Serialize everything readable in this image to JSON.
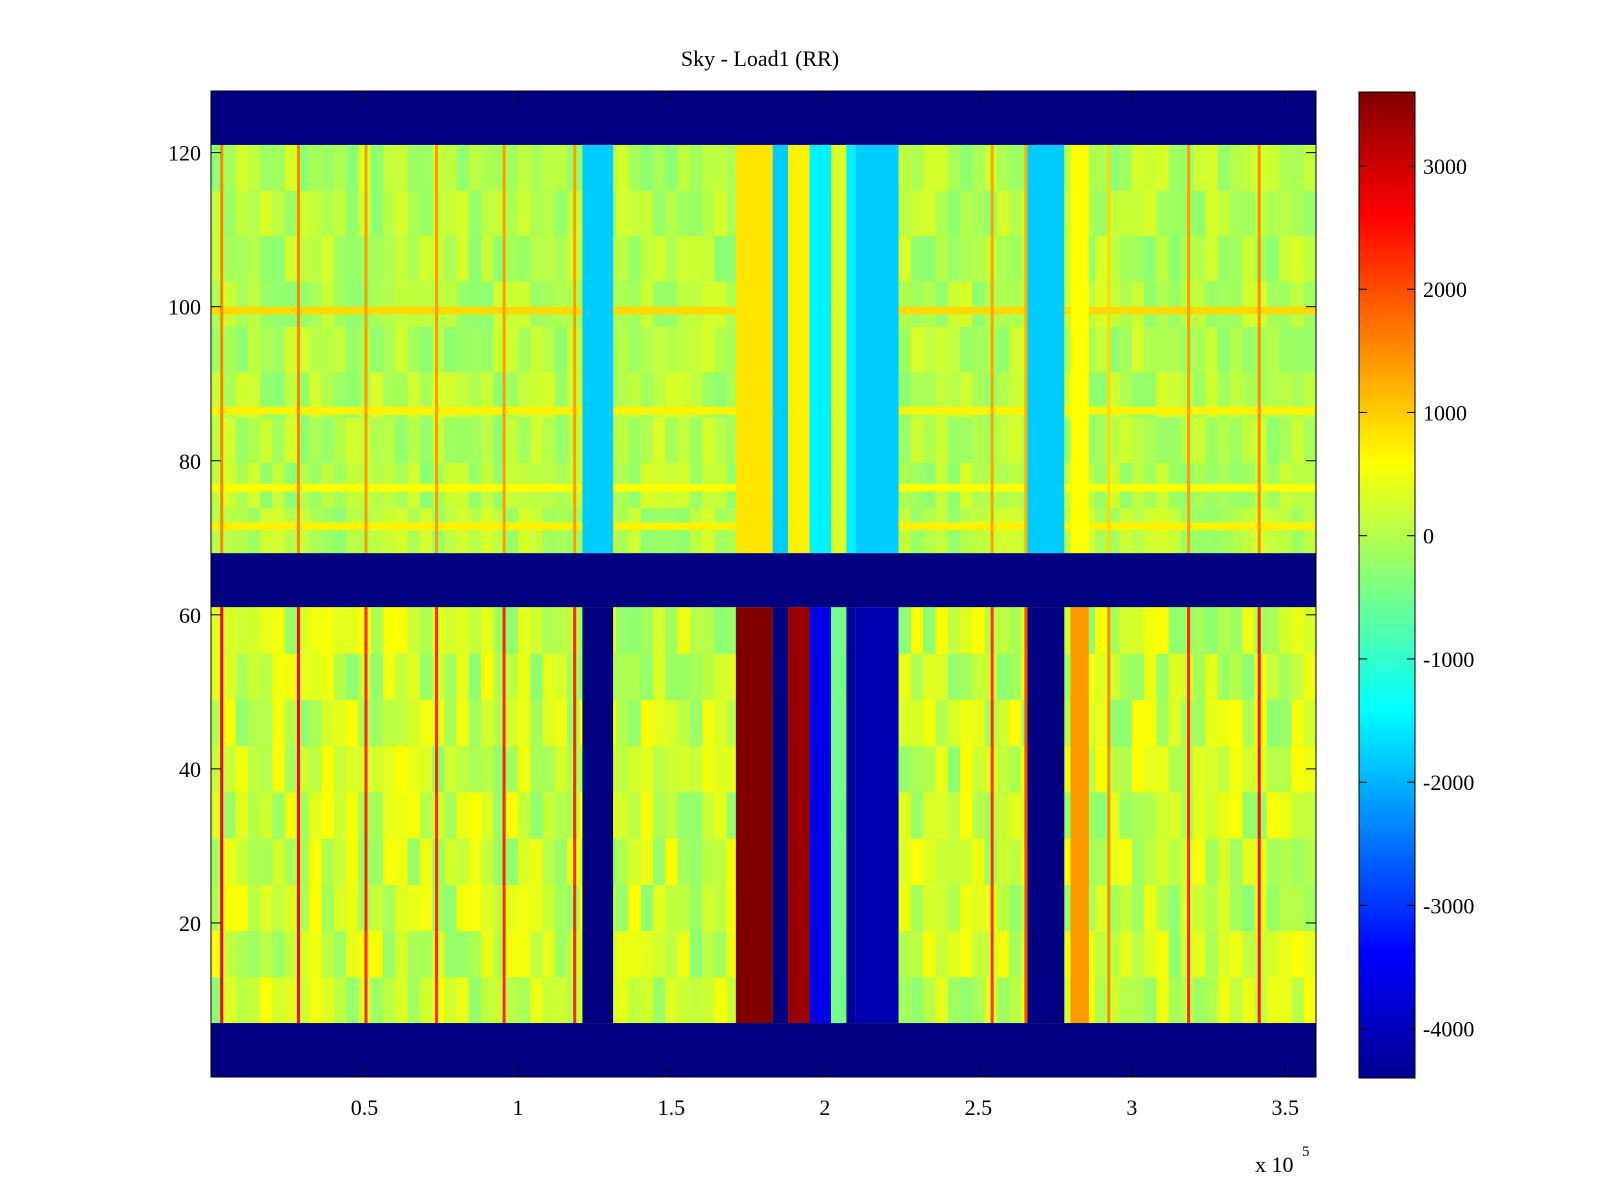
{
  "chart_data": {
    "type": "heatmap",
    "title": "Sky - Load1 (RR)",
    "xlabel": "",
    "ylabel": "",
    "x_multiplier": "x 10",
    "x_multiplier_exponent": "5",
    "xlim": [
      0,
      360000
    ],
    "ylim": [
      0,
      128
    ],
    "x_ticks": [
      50000,
      100000,
      150000,
      200000,
      250000,
      300000,
      350000
    ],
    "x_tick_labels": [
      "0.5",
      "1",
      "1.5",
      "2",
      "2.5",
      "3",
      "3.5"
    ],
    "y_ticks": [
      20,
      40,
      60,
      80,
      100,
      120
    ],
    "y_tick_labels": [
      "20",
      "40",
      "60",
      "80",
      "100",
      "120"
    ],
    "colormap": "jet",
    "clim": [
      -4400,
      3600
    ],
    "colorbar_ticks": [
      3000,
      2000,
      1000,
      0,
      -1000,
      -2000,
      -3000,
      -4000
    ],
    "colorbar_tick_labels": [
      "3000",
      "2000",
      "1000",
      "0",
      "-1000",
      "-2000",
      "-3000",
      "-4000"
    ],
    "colorbar_location": "right",
    "grid": false,
    "background_value": 0,
    "masked_rows": [
      {
        "y_from": 0,
        "y_to": 7,
        "value": -4400
      },
      {
        "y_from": 61,
        "y_to": 68,
        "value": -4400
      },
      {
        "y_from": 121,
        "y_to": 128,
        "value": -4400
      }
    ],
    "column_bands": [
      {
        "x_from": 121000,
        "x_to": 131000,
        "upper_value": -1800,
        "lower_value": -4400
      },
      {
        "x_from": 171000,
        "x_to": 183000,
        "upper_value": 800,
        "lower_value": 3600
      },
      {
        "x_from": 183000,
        "x_to": 188000,
        "upper_value": -1800,
        "lower_value": -4400
      },
      {
        "x_from": 188000,
        "x_to": 195000,
        "upper_value": 700,
        "lower_value": 3400
      },
      {
        "x_from": 195000,
        "x_to": 202000,
        "upper_value": -1500,
        "lower_value": -3600
      },
      {
        "x_from": 202000,
        "x_to": 207000,
        "upper_value": 300,
        "lower_value": -500
      },
      {
        "x_from": 207000,
        "x_to": 210000,
        "upper_value": -1500,
        "lower_value": -4200
      },
      {
        "x_from": 210000,
        "x_to": 224000,
        "upper_value": -1800,
        "lower_value": -4000
      },
      {
        "x_from": 266000,
        "x_to": 278000,
        "upper_value": -1800,
        "lower_value": -4400
      },
      {
        "x_from": 280000,
        "x_to": 286000,
        "upper_value": 600,
        "lower_value": 1400
      }
    ],
    "row_bands": [
      {
        "y": 99,
        "value": 900
      },
      {
        "y": 86,
        "value": 700
      },
      {
        "y": 76,
        "value": 600
      },
      {
        "y": 71,
        "value": 700
      }
    ],
    "streaks": [
      {
        "x": 3000,
        "value": 2600
      },
      {
        "x": 28000,
        "value": 2600
      },
      {
        "x": 50000,
        "value": 2300
      },
      {
        "x": 73000,
        "value": 2300
      },
      {
        "x": 95000,
        "value": 2300
      },
      {
        "x": 118000,
        "value": 2300
      },
      {
        "x": 254000,
        "value": 2200
      },
      {
        "x": 265000,
        "value": 2000
      },
      {
        "x": 292000,
        "value": 1500
      },
      {
        "x": 318000,
        "value": 2300
      },
      {
        "x": 341000,
        "value": 2500
      }
    ]
  }
}
